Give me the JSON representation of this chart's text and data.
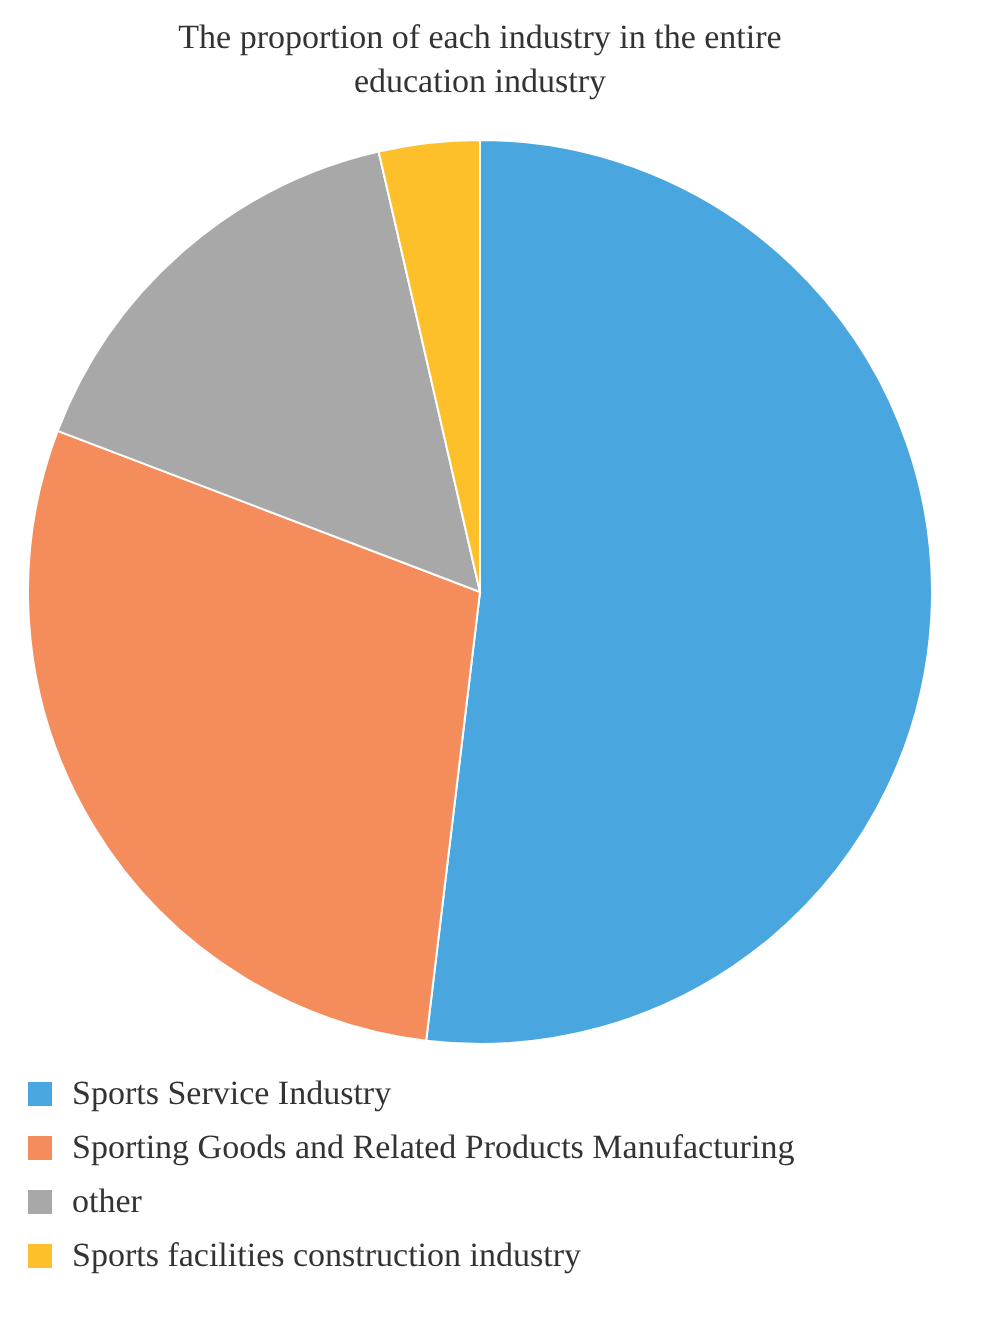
{
  "chart_data": {
    "type": "pie",
    "title": "The proportion of each industry in the entire education industry",
    "categories": [
      "Sports Service Industry",
      "Sporting Goods and Related Products Manufacturing",
      "other",
      "Sports facilities construction industry"
    ],
    "values": [
      51.9,
      28.9,
      15.6,
      3.6
    ],
    "colors": [
      "#4aa6de",
      "#f58c5c",
      "#a8a8a8",
      "#fdc02a"
    ],
    "legend": "bottom"
  }
}
